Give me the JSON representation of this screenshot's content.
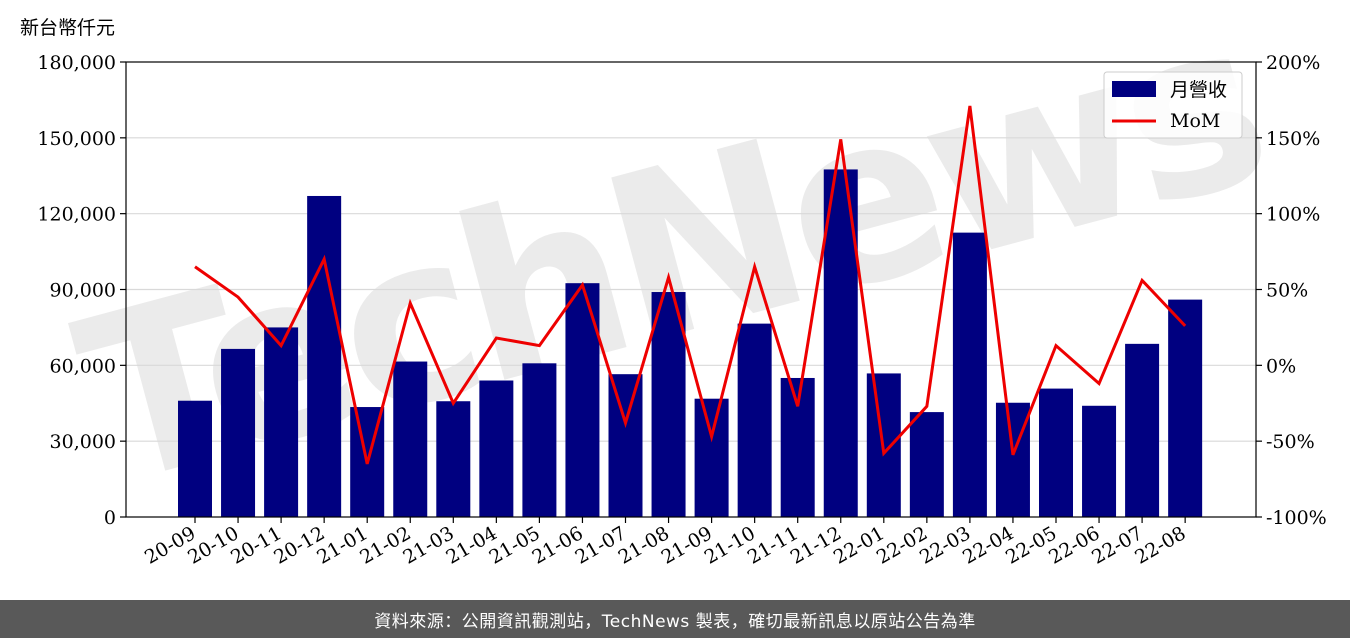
{
  "unit_label": "新台幣仟元",
  "footer_text": "資料來源：公開資訊觀測站，TechNews 製表，確切最新訊息以原站公告為準",
  "watermark_text": "TechNews",
  "colors": {
    "bar": "#000080",
    "line": "#ee0000",
    "grid": "#d9d9d9",
    "footer_bg": "#595959"
  },
  "chart_data": {
    "type": "bar",
    "categories": [
      "20-09",
      "20-10",
      "20-11",
      "20-12",
      "21-01",
      "21-02",
      "21-03",
      "21-04",
      "21-05",
      "21-06",
      "21-07",
      "21-08",
      "21-09",
      "21-10",
      "21-11",
      "21-12",
      "22-01",
      "22-02",
      "22-03",
      "22-04",
      "22-05",
      "22-06",
      "22-07",
      "22-08"
    ],
    "series": [
      {
        "name": "月營收",
        "type": "bar",
        "axis": "left",
        "values": [
          46000,
          66500,
          75000,
          127000,
          43500,
          61500,
          45800,
          54000,
          60800,
          92500,
          56500,
          89000,
          46800,
          76500,
          55000,
          137500,
          56800,
          41500,
          112500,
          45200,
          50800,
          44000,
          68500,
          86000
        ]
      },
      {
        "name": "MoM",
        "type": "line",
        "axis": "right",
        "values": [
          65,
          45,
          13,
          70,
          -65,
          41,
          -25,
          18,
          13,
          53,
          -38,
          58,
          -47,
          65,
          -27,
          149,
          -58,
          -27,
          171,
          -59,
          13,
          -12,
          56,
          26
        ]
      }
    ],
    "left_axis": {
      "ylim": [
        0,
        180000
      ],
      "ticks": [
        0,
        30000,
        60000,
        90000,
        120000,
        150000,
        180000
      ],
      "tick_labels": [
        "0",
        "30,000",
        "60,000",
        "90,000",
        "120,000",
        "150,000",
        "180,000"
      ]
    },
    "right_axis": {
      "ylim": [
        -100,
        200
      ],
      "ticks": [
        -100,
        -50,
        0,
        50,
        100,
        150,
        200
      ],
      "tick_labels": [
        "-100%",
        "-50%",
        "0%",
        "50%",
        "100%",
        "150%",
        "200%"
      ]
    },
    "grid": true,
    "legend_placement": "top-right"
  }
}
